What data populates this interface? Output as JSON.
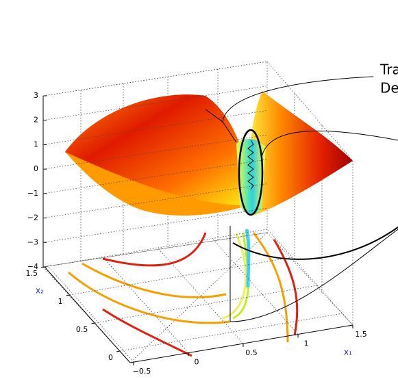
{
  "chart_data": {
    "type": "surface3d",
    "zlim": [
      -4,
      3
    ],
    "zticks": [
      3,
      2,
      1,
      0,
      {
        "value": -1,
        "label": "−1"
      },
      {
        "value": -2,
        "label": "−2"
      },
      {
        "value": -3,
        "label": "−3"
      },
      {
        "value": -4,
        "label": "−4"
      }
    ],
    "x2lim": [
      0,
      1.5
    ],
    "x2ticks": [
      1.5,
      1,
      0.5,
      0
    ],
    "x1lim": [
      -0.5,
      1.5
    ],
    "x1ticks": [
      {
        "value": -0.5,
        "label": "−0.5"
      },
      0,
      0.5,
      1,
      1.5
    ],
    "x2label": "x₂",
    "x1label": "x₁",
    "annotations": [
      "Tra",
      "De"
    ],
    "grid": true
  }
}
